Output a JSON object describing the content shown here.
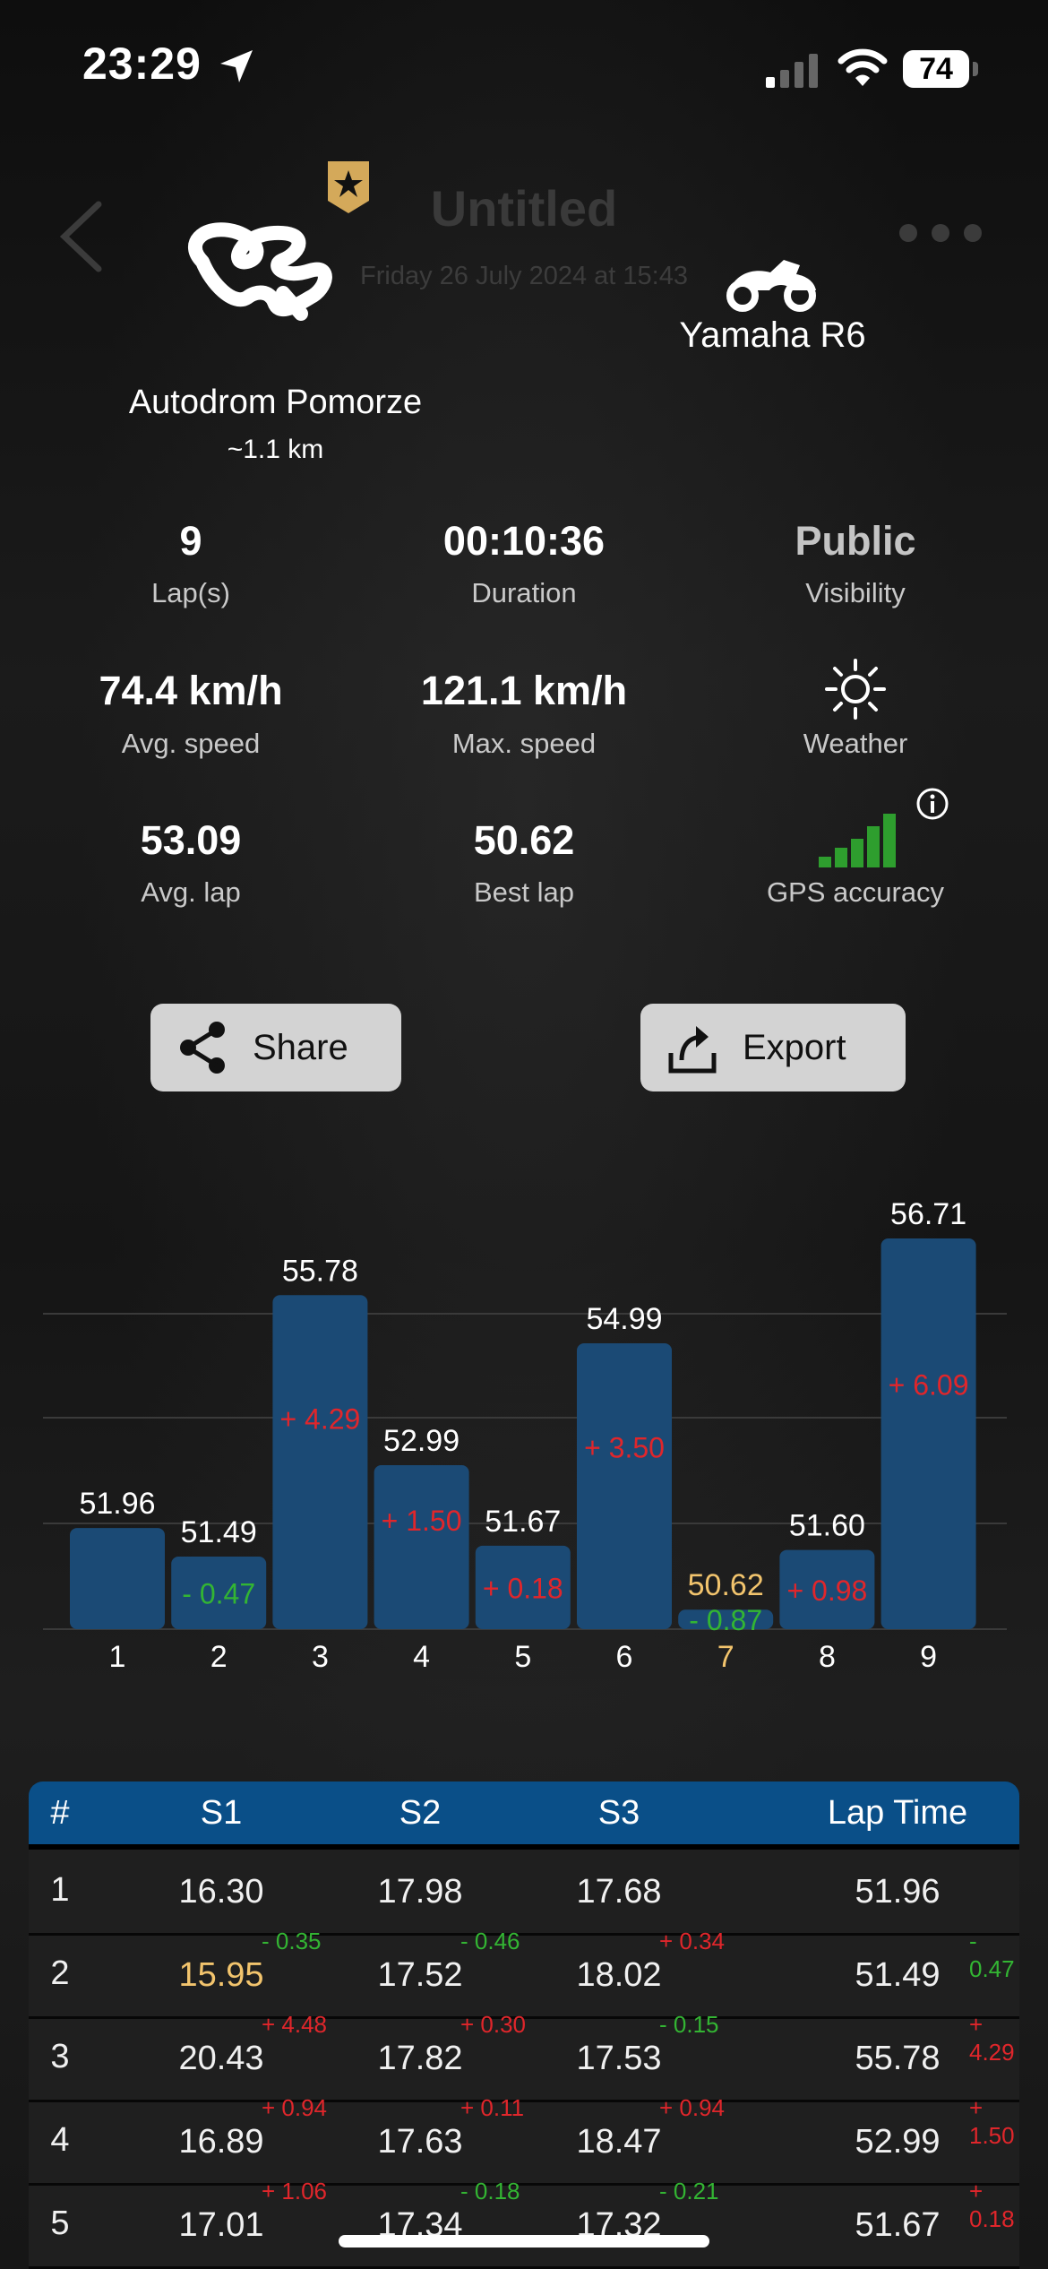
{
  "status_bar": {
    "time": "23:29",
    "battery": "74"
  },
  "header": {
    "title": "Untitled",
    "date": "Friday 26 July 2024 at 15:43"
  },
  "track": {
    "name": "Autodrom Pomorze",
    "length": "~1.1 km"
  },
  "bike": {
    "name": "Yamaha R6"
  },
  "stats": {
    "laps": {
      "value": "9",
      "label": "Lap(s)"
    },
    "duration": {
      "value": "00:10:36",
      "label": "Duration"
    },
    "visibility": {
      "value": "Public",
      "label": "Visibility"
    },
    "avg_speed": {
      "value": "74.4 km/h",
      "label": "Avg. speed"
    },
    "max_speed": {
      "value": "121.1 km/h",
      "label": "Max. speed"
    },
    "weather": {
      "label": "Weather",
      "icon": "sun-icon"
    },
    "avg_lap": {
      "value": "53.09",
      "label": "Avg. lap"
    },
    "best_lap": {
      "value": "50.62",
      "label": "Best lap"
    },
    "gps": {
      "label": "GPS accuracy",
      "icon": "gps-signal-icon"
    }
  },
  "actions": {
    "share": "Share",
    "export": "Export"
  },
  "colors": {
    "bar": "#1b4a75",
    "best": "#f2c46d",
    "positive_delta": "#e0262b",
    "negative_delta": "#33b533",
    "table_header": "#0a4f88"
  },
  "chart_data": {
    "type": "bar",
    "categories": [
      "1",
      "2",
      "3",
      "4",
      "5",
      "6",
      "7",
      "8",
      "9"
    ],
    "values": [
      51.96,
      51.49,
      55.78,
      52.99,
      51.67,
      54.99,
      50.62,
      51.6,
      56.71
    ],
    "value_labels": [
      "51.96",
      "51.49",
      "55.78",
      "52.99",
      "51.67",
      "54.99",
      "50.62",
      "51.60",
      "56.71"
    ],
    "deltas": [
      "",
      "- 0.47",
      "+ 4.29",
      "+ 1.50",
      "+ 0.18",
      "+ 3.50",
      "- 0.87",
      "+ 0.98",
      "+ 6.09"
    ],
    "best_index": 6,
    "ylim": [
      50.3,
      56.71
    ],
    "grid": true
  },
  "table": {
    "headers": [
      "#",
      "S1",
      "S2",
      "S3",
      "Lap Time"
    ],
    "rows": [
      {
        "n": "1",
        "s1": "16.30",
        "s1d": "",
        "s2": "17.98",
        "s2d": "",
        "s3": "17.68",
        "s3d": "",
        "lap": "51.96",
        "lapd": ""
      },
      {
        "n": "2",
        "s1": "15.95",
        "s1d": "- 0.35",
        "s2": "17.52",
        "s2d": "- 0.46",
        "s3": "18.02",
        "s3d": "+ 0.34",
        "lap": "51.49",
        "lapd": "- 0.47"
      },
      {
        "n": "3",
        "s1": "20.43",
        "s1d": "+ 4.48",
        "s2": "17.82",
        "s2d": "+ 0.30",
        "s3": "17.53",
        "s3d": "- 0.15",
        "lap": "55.78",
        "lapd": "+ 4.29"
      },
      {
        "n": "4",
        "s1": "16.89",
        "s1d": "+ 0.94",
        "s2": "17.63",
        "s2d": "+ 0.11",
        "s3": "18.47",
        "s3d": "+ 0.94",
        "lap": "52.99",
        "lapd": "+ 1.50"
      },
      {
        "n": "5",
        "s1": "17.01",
        "s1d": "+ 1.06",
        "s2": "17.34",
        "s2d": "- 0.18",
        "s3": "17.32",
        "s3d": "- 0.21",
        "lap": "51.67",
        "lapd": "+ 0.18"
      }
    ]
  }
}
